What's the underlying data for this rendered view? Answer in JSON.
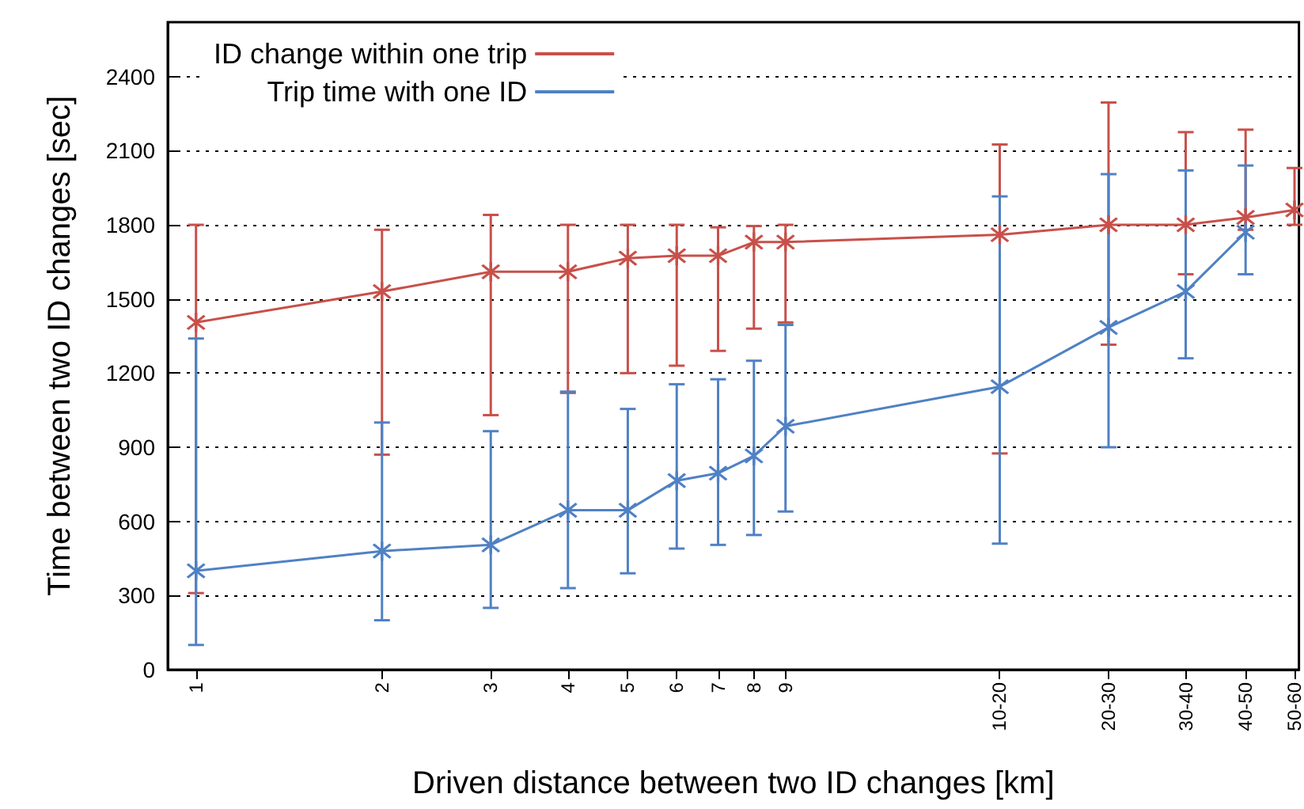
{
  "chart_data": {
    "type": "line",
    "xlabel": "Driven distance between two ID changes [km]",
    "ylabel": "Time between two ID changes [sec]",
    "log": "x",
    "xlim": [
      0.9,
      61
    ],
    "ylim": [
      0,
      2620
    ],
    "xticks": [
      1,
      2,
      3,
      4,
      5,
      6,
      7,
      8,
      9,
      {
        "value": 20,
        "label": "10-20"
      },
      {
        "value": 30,
        "label": "20-30"
      },
      {
        "value": 40,
        "label": "30-40"
      },
      {
        "value": 50,
        "label": "40-50"
      },
      {
        "value": 60,
        "label": "50-60"
      }
    ],
    "yticks": [
      0,
      300,
      600,
      900,
      1200,
      1500,
      1800,
      2100,
      2400
    ],
    "x": [
      1,
      2,
      3,
      4,
      5,
      6,
      7,
      8,
      9,
      20,
      30,
      40,
      50,
      60
    ],
    "grid": "y",
    "legend": "top left",
    "marker": "cross",
    "line_style": "solid",
    "series": [
      {
        "name": "ID change within one trip",
        "color": "#c8504a",
        "values": [
          1405,
          1530,
          1610,
          1610,
          1665,
          1675,
          1675,
          1730,
          1730,
          1760,
          1800,
          1800,
          1830,
          1860
        ],
        "errors": [
          [
            310,
            1800
          ],
          [
            870,
            1780
          ],
          [
            1030,
            1840
          ],
          [
            1120,
            1800
          ],
          [
            1200,
            1800
          ],
          [
            1230,
            1800
          ],
          [
            1290,
            1790
          ],
          [
            1380,
            1795
          ],
          [
            1405,
            1800
          ],
          [
            875,
            2125
          ],
          [
            1315,
            2295
          ],
          [
            1600,
            2175
          ],
          [
            1780,
            2185
          ],
          [
            1800,
            2030
          ]
        ]
      },
      {
        "name": "Trip time with one ID",
        "color": "#4f81c4",
        "x": [
          1,
          2,
          3,
          4,
          5,
          6,
          7,
          8,
          9,
          20,
          30,
          40,
          50
        ],
        "values": [
          400,
          480,
          505,
          645,
          645,
          765,
          795,
          865,
          985,
          1145,
          1385,
          1530,
          1770
        ],
        "errors": [
          [
            100,
            1340
          ],
          [
            200,
            1000
          ],
          [
            250,
            965
          ],
          [
            330,
            1125
          ],
          [
            390,
            1055
          ],
          [
            490,
            1155
          ],
          [
            505,
            1175
          ],
          [
            545,
            1250
          ],
          [
            640,
            1395
          ],
          [
            510,
            1915
          ],
          [
            900,
            2005
          ],
          [
            1260,
            2020
          ],
          [
            1600,
            2040
          ]
        ]
      }
    ]
  }
}
